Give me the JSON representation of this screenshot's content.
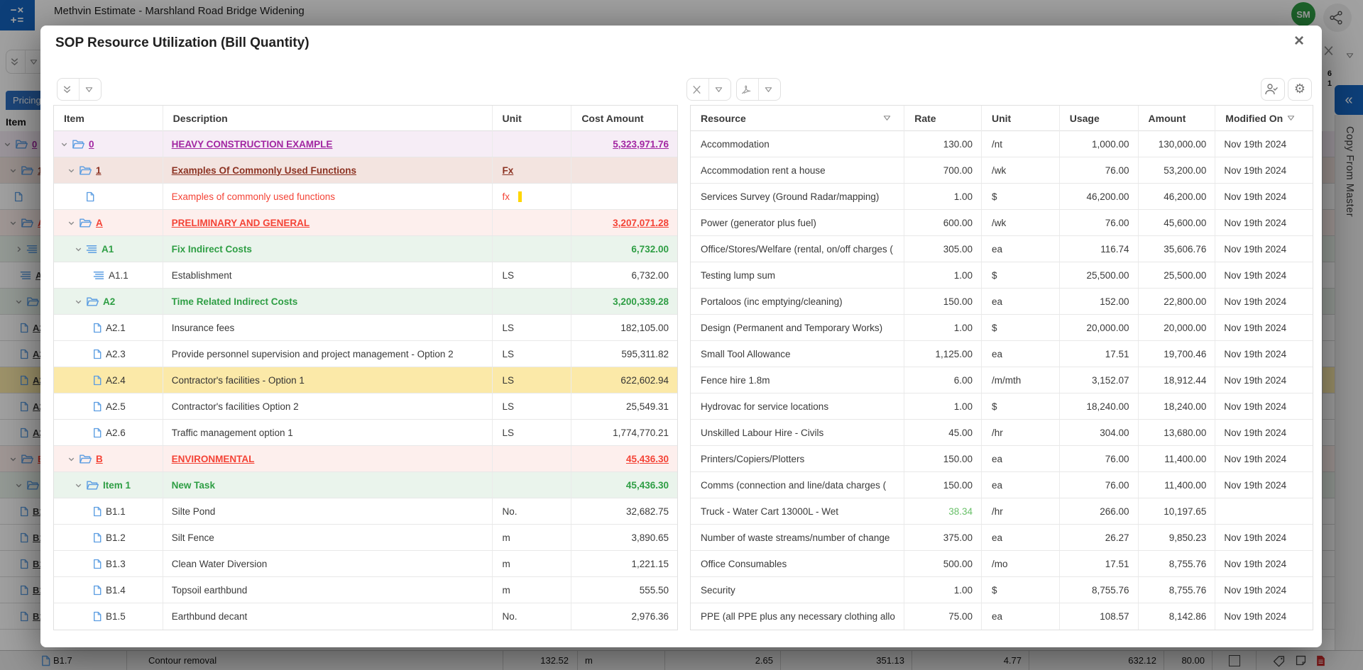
{
  "app": {
    "window_title": "Methvin Estimate - Marshland Road Bridge Widening",
    "avatar_initials": "SM",
    "app_icon_glyphs": [
      "−×",
      "+="
    ],
    "pricing_tab_label": "Pricing",
    "item_column_label": "Item",
    "side_panel_label": "Copy From Master",
    "collapse_panel_glyph": "«",
    "grid_edge_numbers": [
      "6",
      "1"
    ],
    "bottom_row": {
      "code": "B1.7",
      "description": "Contour removal",
      "quantity": "132.52",
      "unit": "m",
      "values": [
        "2.65",
        "351.13",
        "4.77",
        "632.12",
        "80.00"
      ]
    }
  },
  "modal": {
    "title": "SOP Resource Utilization (Bill Quantity)",
    "close_glyph": "×"
  },
  "left_table": {
    "columns": [
      "Item",
      "Description",
      "Unit",
      "Cost Amount"
    ],
    "rows": [
      {
        "code": "0",
        "desc": "HEAVY CONSTRUCTION EXAMPLE",
        "unit": "",
        "cost": "5,323,971.76",
        "level": 0,
        "icon": "folder",
        "chevron": true,
        "style": "purple"
      },
      {
        "code": "1",
        "desc": "Examples Of Commonly Used Functions",
        "unit": "Fx",
        "cost": "",
        "level": 1,
        "icon": "folder",
        "chevron": true,
        "style": "maroon"
      },
      {
        "code": "",
        "desc": "Examples of commonly used functions",
        "unit": "fx",
        "cost": "",
        "level": 2,
        "icon": "doc",
        "chevron": false,
        "style": "fx",
        "caret": true
      },
      {
        "code": "A",
        "desc": "PRELIMINARY AND GENERAL",
        "unit": "",
        "cost": "3,207,071.28",
        "level": 1,
        "icon": "folder",
        "chevron": true,
        "style": "red"
      },
      {
        "code": "A1",
        "desc": "Fix Indirect Costs",
        "unit": "",
        "cost": "6,732.00",
        "level": 2,
        "icon": "list",
        "chevron": true,
        "style": "green"
      },
      {
        "code": "A1.1",
        "desc": "Establishment",
        "unit": "LS",
        "cost": "6,732.00",
        "level": 3,
        "icon": "list",
        "chevron": false,
        "style": "plain"
      },
      {
        "code": "A2",
        "desc": "Time Related Indirect Costs",
        "unit": "",
        "cost": "3,200,339.28",
        "level": 2,
        "icon": "folder",
        "chevron": true,
        "style": "green"
      },
      {
        "code": "A2.1",
        "desc": "Insurance fees",
        "unit": "LS",
        "cost": "182,105.00",
        "level": 3,
        "icon": "doc",
        "chevron": false,
        "style": "plain"
      },
      {
        "code": "A2.3",
        "desc": "Provide personnel supervision and project management - Option 2",
        "unit": "LS",
        "cost": "595,311.82",
        "level": 3,
        "icon": "doc",
        "chevron": false,
        "style": "plain"
      },
      {
        "code": "A2.4",
        "desc": "Contractor's facilities - Option 1",
        "unit": "LS",
        "cost": "622,602.94",
        "level": 3,
        "icon": "doc",
        "chevron": false,
        "style": "yellow"
      },
      {
        "code": "A2.5",
        "desc": "Contractor's facilities Option 2",
        "unit": "LS",
        "cost": "25,549.31",
        "level": 3,
        "icon": "doc",
        "chevron": false,
        "style": "plain"
      },
      {
        "code": "A2.6",
        "desc": "Traffic management option 1",
        "unit": "LS",
        "cost": "1,774,770.21",
        "level": 3,
        "icon": "doc",
        "chevron": false,
        "style": "plain"
      },
      {
        "code": "B",
        "desc": "ENVIRONMENTAL",
        "unit": "",
        "cost": "45,436.30",
        "level": 1,
        "icon": "folder",
        "chevron": true,
        "style": "red"
      },
      {
        "code": "Item 1",
        "desc": "New Task",
        "unit": "",
        "cost": "45,436.30",
        "level": 2,
        "icon": "folder",
        "chevron": true,
        "style": "green"
      },
      {
        "code": "B1.1",
        "desc": "Silte Pond",
        "unit": "No.",
        "cost": "32,682.75",
        "level": 3,
        "icon": "doc",
        "chevron": false,
        "style": "plain"
      },
      {
        "code": "B1.2",
        "desc": "Silt Fence",
        "unit": "m",
        "cost": "3,890.65",
        "level": 3,
        "icon": "doc",
        "chevron": false,
        "style": "plain"
      },
      {
        "code": "B1.3",
        "desc": "Clean Water Diversion",
        "unit": "m",
        "cost": "1,221.15",
        "level": 3,
        "icon": "doc",
        "chevron": false,
        "style": "plain"
      },
      {
        "code": "B1.4",
        "desc": "Topsoil earthbund",
        "unit": "m",
        "cost": "555.50",
        "level": 3,
        "icon": "doc",
        "chevron": false,
        "style": "plain"
      },
      {
        "code": "B1.5",
        "desc": "Earthbund decant",
        "unit": "No.",
        "cost": "2,976.36",
        "level": 3,
        "icon": "doc",
        "chevron": false,
        "style": "plain"
      }
    ]
  },
  "right_table": {
    "columns": [
      "Resource",
      "Rate",
      "Unit",
      "Usage",
      "Amount",
      "Modified On"
    ],
    "rows": [
      {
        "resource": "Accommodation",
        "rate": "130.00",
        "unit": "/nt",
        "usage": "1,000.00",
        "amount": "130,000.00",
        "modified": "Nov 19th 2024"
      },
      {
        "resource": "Accommodation rent a house",
        "rate": "700.00",
        "unit": "/wk",
        "usage": "76.00",
        "amount": "53,200.00",
        "modified": "Nov 19th 2024"
      },
      {
        "resource": "Services Survey (Ground Radar/mapping)",
        "rate": "1.00",
        "unit": "$",
        "usage": "46,200.00",
        "amount": "46,200.00",
        "modified": "Nov 19th 2024"
      },
      {
        "resource": "Power (generator plus fuel)",
        "rate": "600.00",
        "unit": "/wk",
        "usage": "76.00",
        "amount": "45,600.00",
        "modified": "Nov 19th 2024"
      },
      {
        "resource": "Office/Stores/Welfare (rental, on/off charges (",
        "rate": "305.00",
        "unit": "ea",
        "usage": "116.74",
        "amount": "35,606.76",
        "modified": "Nov 19th 2024"
      },
      {
        "resource": "Testing lump sum",
        "rate": "1.00",
        "unit": "$",
        "usage": "25,500.00",
        "amount": "25,500.00",
        "modified": "Nov 19th 2024"
      },
      {
        "resource": "Portaloos (inc emptying/cleaning)",
        "rate": "150.00",
        "unit": "ea",
        "usage": "152.00",
        "amount": "22,800.00",
        "modified": "Nov 19th 2024"
      },
      {
        "resource": "Design (Permanent and Temporary Works)",
        "rate": "1.00",
        "unit": "$",
        "usage": "20,000.00",
        "amount": "20,000.00",
        "modified": "Nov 19th 2024"
      },
      {
        "resource": "Small Tool Allowance",
        "rate": "1,125.00",
        "unit": "ea",
        "usage": "17.51",
        "amount": "19,700.46",
        "modified": "Nov 19th 2024"
      },
      {
        "resource": "Fence hire 1.8m",
        "rate": "6.00",
        "unit": "/m/mth",
        "usage": "3,152.07",
        "amount": "18,912.44",
        "modified": "Nov 19th 2024"
      },
      {
        "resource": "Hydrovac for service locations",
        "rate": "1.00",
        "unit": "$",
        "usage": "18,240.00",
        "amount": "18,240.00",
        "modified": "Nov 19th 2024"
      },
      {
        "resource": "Unskilled Labour Hire - Civils",
        "rate": "45.00",
        "unit": "/hr",
        "usage": "304.00",
        "amount": "13,680.00",
        "modified": "Nov 19th 2024"
      },
      {
        "resource": "Printers/Copiers/Plotters",
        "rate": "150.00",
        "unit": "ea",
        "usage": "76.00",
        "amount": "11,400.00",
        "modified": "Nov 19th 2024"
      },
      {
        "resource": "Comms (connection and line/data charges (",
        "rate": "150.00",
        "unit": "ea",
        "usage": "76.00",
        "amount": "11,400.00",
        "modified": "Nov 19th 2024"
      },
      {
        "resource": "Truck - Water Cart 13000L - Wet",
        "rate": "38.34",
        "unit": "/hr",
        "usage": "266.00",
        "amount": "10,197.65",
        "modified": "",
        "rate_green": true
      },
      {
        "resource": "Number of waste streams/number of change",
        "rate": "375.00",
        "unit": "ea",
        "usage": "26.27",
        "amount": "9,850.23",
        "modified": "Nov 19th 2024"
      },
      {
        "resource": "Office Consumables",
        "rate": "500.00",
        "unit": "/mo",
        "usage": "17.51",
        "amount": "8,755.76",
        "modified": "Nov 19th 2024"
      },
      {
        "resource": "Security",
        "rate": "1.00",
        "unit": "$",
        "usage": "8,755.76",
        "amount": "8,755.76",
        "modified": "Nov 19th 2024"
      },
      {
        "resource": "PPE (all PPE plus any necessary clothing allo",
        "rate": "75.00",
        "unit": "ea",
        "usage": "108.57",
        "amount": "8,142.86",
        "modified": "Nov 19th 2024"
      }
    ]
  },
  "colors": {
    "accent_blue": "#1565c0",
    "icon_blue": "#5b9de2",
    "purple_group": "#a226a2",
    "maroon_group": "#8c3222",
    "red_group": "#f44336",
    "green_group": "#2e9e44",
    "green_rate": "#69c069",
    "yellow_row": "#fbe9a8",
    "avatar_green": "#2f9e44",
    "cursor_yellow": "#ffd600"
  }
}
